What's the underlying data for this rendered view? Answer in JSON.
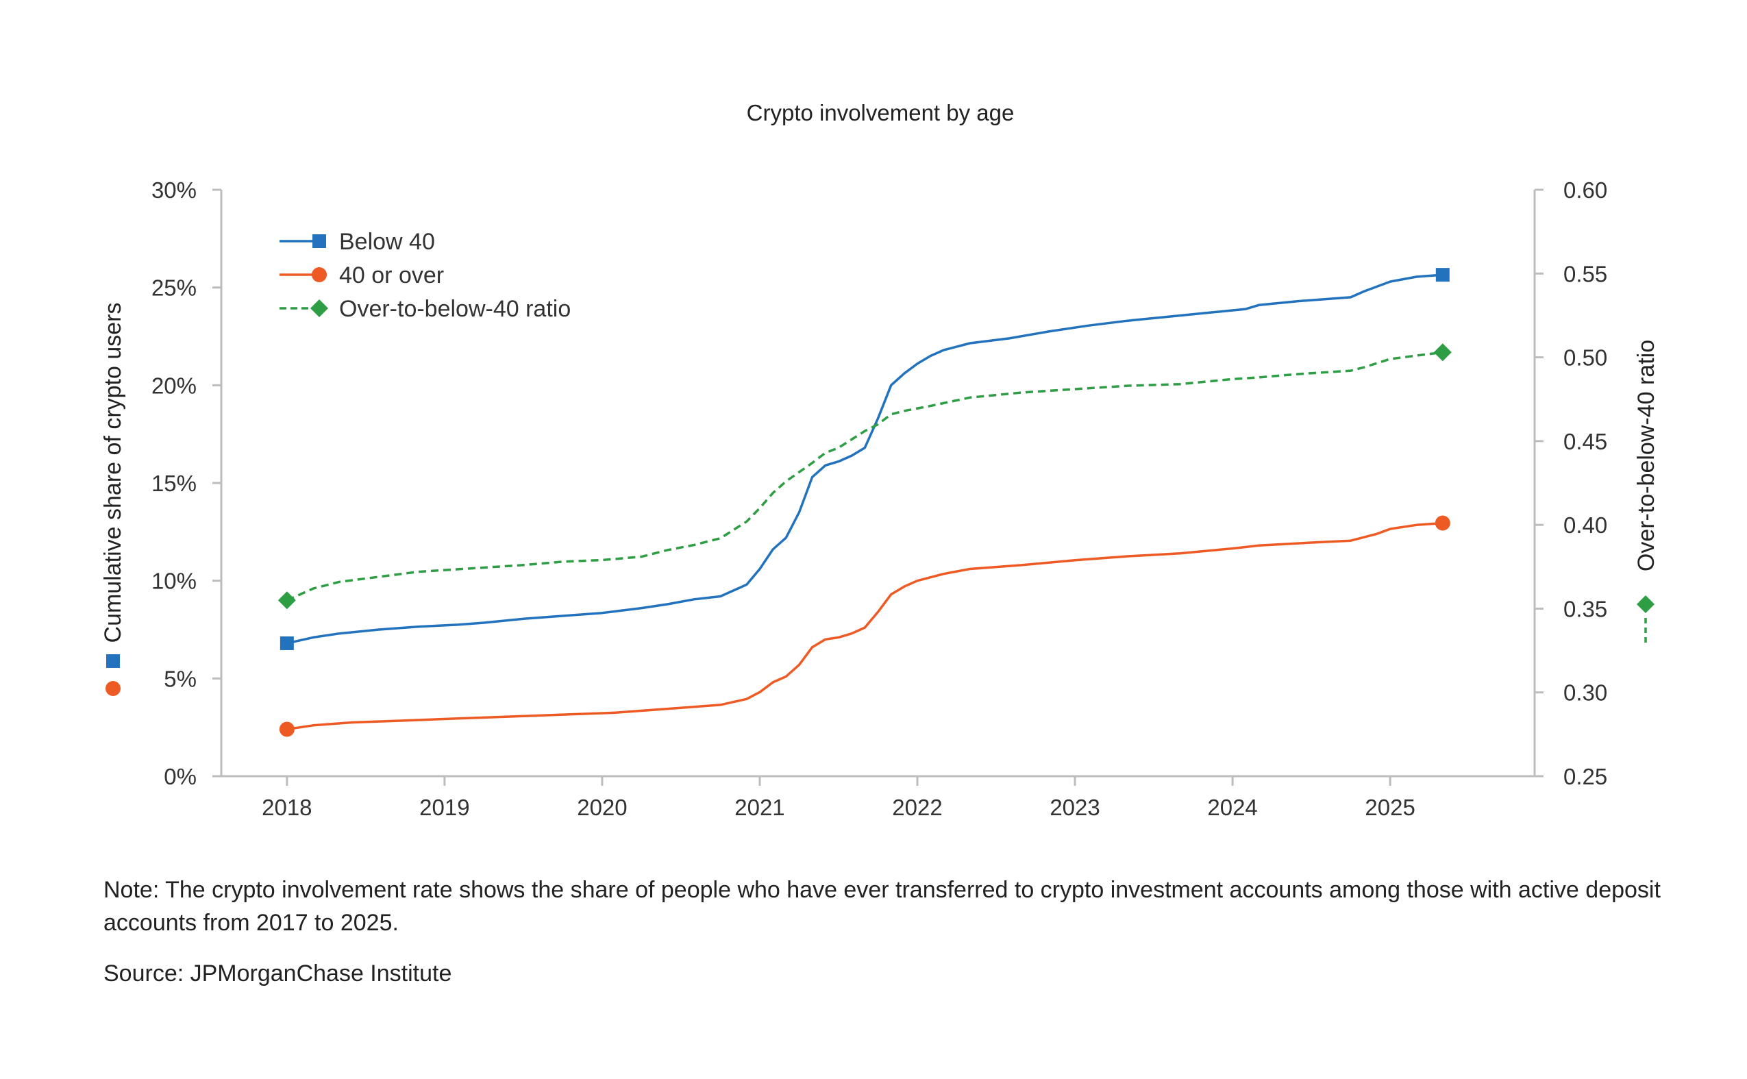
{
  "chart_data": {
    "type": "line",
    "title": "Crypto involvement by age",
    "ylabel": "Cumulative share of crypto users",
    "y2label": "Over-to-below-40 ratio",
    "ylim": [
      0,
      30
    ],
    "y2lim": [
      0.25,
      0.6
    ],
    "yticks": [
      "0%",
      "5%",
      "10%",
      "15%",
      "20%",
      "25%",
      "30%"
    ],
    "y2ticks": [
      "0.25",
      "0.30",
      "0.35",
      "0.40",
      "0.45",
      "0.50",
      "0.55",
      "0.60"
    ],
    "xticks": [
      "2018",
      "2019",
      "2020",
      "2021",
      "2022",
      "2023",
      "2024",
      "2025"
    ],
    "xlim": [
      "2017-08",
      "2025-12"
    ],
    "legend_position": "top-left",
    "grid": false,
    "series": [
      {
        "name": "Below 40",
        "axis": "left",
        "color": "#2272BD",
        "marker": "square",
        "style": "solid",
        "points": [
          [
            "2018-01",
            6.8
          ],
          [
            "2018-03",
            7.1
          ],
          [
            "2018-05",
            7.3
          ],
          [
            "2018-08",
            7.5
          ],
          [
            "2018-11",
            7.65
          ],
          [
            "2019-02",
            7.75
          ],
          [
            "2019-04",
            7.85
          ],
          [
            "2019-07",
            8.05
          ],
          [
            "2019-10",
            8.2
          ],
          [
            "2020-01",
            8.35
          ],
          [
            "2020-04",
            8.6
          ],
          [
            "2020-06",
            8.8
          ],
          [
            "2020-08",
            9.05
          ],
          [
            "2020-10",
            9.2
          ],
          [
            "2020-12",
            9.8
          ],
          [
            "2021-01",
            10.6
          ],
          [
            "2021-02",
            11.6
          ],
          [
            "2021-03",
            12.2
          ],
          [
            "2021-04",
            13.5
          ],
          [
            "2021-05",
            15.3
          ],
          [
            "2021-06",
            15.9
          ],
          [
            "2021-07",
            16.1
          ],
          [
            "2021-08",
            16.4
          ],
          [
            "2021-09",
            16.8
          ],
          [
            "2021-10",
            18.3
          ],
          [
            "2021-11",
            20.0
          ],
          [
            "2021-12",
            20.6
          ],
          [
            "2022-01",
            21.1
          ],
          [
            "2022-02",
            21.5
          ],
          [
            "2022-03",
            21.8
          ],
          [
            "2022-05",
            22.15
          ],
          [
            "2022-08",
            22.4
          ],
          [
            "2022-11",
            22.75
          ],
          [
            "2023-02",
            23.05
          ],
          [
            "2023-05",
            23.3
          ],
          [
            "2023-08",
            23.5
          ],
          [
            "2023-11",
            23.7
          ],
          [
            "2024-02",
            23.9
          ],
          [
            "2024-03",
            24.1
          ],
          [
            "2024-06",
            24.3
          ],
          [
            "2024-10",
            24.5
          ],
          [
            "2024-11",
            24.8
          ],
          [
            "2025-01",
            25.3
          ],
          [
            "2025-03",
            25.55
          ],
          [
            "2025-05",
            25.65
          ]
        ]
      },
      {
        "name": "40 or over",
        "axis": "left",
        "color": "#EE5A24",
        "marker": "circle",
        "style": "solid",
        "points": [
          [
            "2018-01",
            2.4
          ],
          [
            "2018-03",
            2.6
          ],
          [
            "2018-06",
            2.75
          ],
          [
            "2018-10",
            2.85
          ],
          [
            "2019-02",
            2.95
          ],
          [
            "2019-06",
            3.05
          ],
          [
            "2019-10",
            3.15
          ],
          [
            "2020-02",
            3.25
          ],
          [
            "2020-06",
            3.45
          ],
          [
            "2020-10",
            3.65
          ],
          [
            "2020-12",
            3.95
          ],
          [
            "2021-01",
            4.3
          ],
          [
            "2021-02",
            4.8
          ],
          [
            "2021-03",
            5.1
          ],
          [
            "2021-04",
            5.7
          ],
          [
            "2021-05",
            6.6
          ],
          [
            "2021-06",
            7.0
          ],
          [
            "2021-07",
            7.1
          ],
          [
            "2021-08",
            7.3
          ],
          [
            "2021-09",
            7.6
          ],
          [
            "2021-10",
            8.4
          ],
          [
            "2021-11",
            9.3
          ],
          [
            "2021-12",
            9.7
          ],
          [
            "2022-01",
            10.0
          ],
          [
            "2022-03",
            10.35
          ],
          [
            "2022-05",
            10.6
          ],
          [
            "2022-09",
            10.8
          ],
          [
            "2023-01",
            11.05
          ],
          [
            "2023-05",
            11.25
          ],
          [
            "2023-09",
            11.4
          ],
          [
            "2024-01",
            11.65
          ],
          [
            "2024-03",
            11.8
          ],
          [
            "2024-07",
            11.95
          ],
          [
            "2024-10",
            12.05
          ],
          [
            "2024-12",
            12.4
          ],
          [
            "2025-01",
            12.65
          ],
          [
            "2025-03",
            12.85
          ],
          [
            "2025-05",
            12.95
          ]
        ]
      },
      {
        "name": "Over-to-below-40 ratio",
        "axis": "right",
        "color": "#2E9E45",
        "marker": "diamond",
        "style": "dashed",
        "points": [
          [
            "2018-01",
            0.355
          ],
          [
            "2018-03",
            0.362
          ],
          [
            "2018-05",
            0.366
          ],
          [
            "2018-08",
            0.369
          ],
          [
            "2018-11",
            0.372
          ],
          [
            "2019-03",
            0.374
          ],
          [
            "2019-07",
            0.376
          ],
          [
            "2019-10",
            0.378
          ],
          [
            "2020-01",
            0.379
          ],
          [
            "2020-04",
            0.381
          ],
          [
            "2020-06",
            0.385
          ],
          [
            "2020-08",
            0.388
          ],
          [
            "2020-10",
            0.392
          ],
          [
            "2020-12",
            0.402
          ],
          [
            "2021-01",
            0.41
          ],
          [
            "2021-02",
            0.419
          ],
          [
            "2021-03",
            0.426
          ],
          [
            "2021-05",
            0.437
          ],
          [
            "2021-06",
            0.443
          ],
          [
            "2021-07",
            0.446
          ],
          [
            "2021-08",
            0.451
          ],
          [
            "2021-09",
            0.456
          ],
          [
            "2021-10",
            0.46
          ],
          [
            "2021-11",
            0.466
          ],
          [
            "2021-12",
            0.468
          ],
          [
            "2022-02",
            0.471
          ],
          [
            "2022-05",
            0.476
          ],
          [
            "2022-09",
            0.479
          ],
          [
            "2023-01",
            0.481
          ],
          [
            "2023-05",
            0.483
          ],
          [
            "2023-09",
            0.484
          ],
          [
            "2024-01",
            0.487
          ],
          [
            "2024-03",
            0.488
          ],
          [
            "2024-06",
            0.49
          ],
          [
            "2024-10",
            0.492
          ],
          [
            "2024-11",
            0.494
          ],
          [
            "2025-01",
            0.499
          ],
          [
            "2025-03",
            0.501
          ],
          [
            "2025-05",
            0.503
          ]
        ]
      }
    ]
  },
  "note": "Note: The crypto involvement rate shows the share of people who have ever transferred to crypto investment accounts among those with active deposit accounts from 2017 to  2025.",
  "source": "Source: JPMorganChase Institute"
}
